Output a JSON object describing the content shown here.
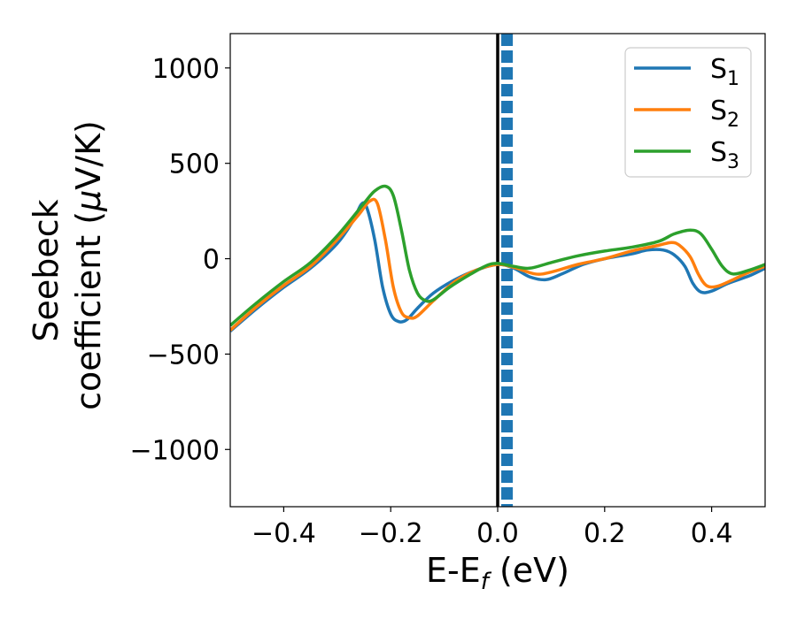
{
  "chart_data": {
    "type": "line",
    "xlabel": "E-E",
    "xlabel_sub": "f",
    "xlabel_unit": " (eV)",
    "ylabel_line1": "Seebeck",
    "ylabel_line2_prefix": "coefficient  (",
    "ylabel_mu": "μ",
    "ylabel_line2_suffix": "V/K)",
    "xlim": [
      -0.5,
      0.5
    ],
    "ylim": [
      -1300,
      1180
    ],
    "xticks": [
      -0.4,
      -0.2,
      0.0,
      0.2,
      0.4
    ],
    "xtick_labels": [
      "−0.4",
      "−0.2",
      "0.0",
      "0.2",
      "0.4"
    ],
    "yticks": [
      -1000,
      -500,
      0,
      500,
      1000
    ],
    "ytick_labels": [
      "−1000",
      "−500",
      "0",
      "500",
      "1000"
    ],
    "legend_position": "top-right",
    "vertical_lines": [
      {
        "x": 0.0,
        "color": "#000000",
        "style": "solid"
      },
      {
        "x": 0.01,
        "color": "#1f77b4",
        "style": "dashed"
      },
      {
        "x": 0.015,
        "color": "#1f77b4",
        "style": "dashed"
      },
      {
        "x": 0.02,
        "color": "#1f77b4",
        "style": "dashed"
      },
      {
        "x": 0.025,
        "color": "#1f77b4",
        "style": "dashed"
      }
    ],
    "series": [
      {
        "name": "S",
        "subscript": "1",
        "color": "#1f77b4",
        "points": [
          [
            -0.5,
            -380
          ],
          [
            -0.45,
            -260
          ],
          [
            -0.4,
            -150
          ],
          [
            -0.35,
            -50
          ],
          [
            -0.3,
            80
          ],
          [
            -0.27,
            200
          ],
          [
            -0.255,
            285
          ],
          [
            -0.245,
            270
          ],
          [
            -0.23,
            100
          ],
          [
            -0.215,
            -150
          ],
          [
            -0.2,
            -290
          ],
          [
            -0.185,
            -330
          ],
          [
            -0.17,
            -320
          ],
          [
            -0.15,
            -260
          ],
          [
            -0.12,
            -180
          ],
          [
            -0.08,
            -110
          ],
          [
            -0.04,
            -60
          ],
          [
            0.0,
            -30
          ],
          [
            0.03,
            -50
          ],
          [
            0.06,
            -95
          ],
          [
            0.09,
            -110
          ],
          [
            0.12,
            -80
          ],
          [
            0.16,
            -30
          ],
          [
            0.2,
            0
          ],
          [
            0.25,
            25
          ],
          [
            0.28,
            45
          ],
          [
            0.31,
            45
          ],
          [
            0.33,
            20
          ],
          [
            0.35,
            -40
          ],
          [
            0.365,
            -130
          ],
          [
            0.38,
            -175
          ],
          [
            0.4,
            -170
          ],
          [
            0.43,
            -130
          ],
          [
            0.47,
            -90
          ],
          [
            0.5,
            -50
          ]
        ]
      },
      {
        "name": "S",
        "subscript": "2",
        "color": "#ff7f0e",
        "points": [
          [
            -0.5,
            -375
          ],
          [
            -0.45,
            -250
          ],
          [
            -0.4,
            -140
          ],
          [
            -0.35,
            -40
          ],
          [
            -0.3,
            100
          ],
          [
            -0.26,
            230
          ],
          [
            -0.24,
            300
          ],
          [
            -0.225,
            290
          ],
          [
            -0.21,
            100
          ],
          [
            -0.195,
            -150
          ],
          [
            -0.18,
            -280
          ],
          [
            -0.165,
            -310
          ],
          [
            -0.15,
            -300
          ],
          [
            -0.12,
            -220
          ],
          [
            -0.08,
            -120
          ],
          [
            -0.04,
            -60
          ],
          [
            0.0,
            -30
          ],
          [
            0.03,
            -45
          ],
          [
            0.07,
            -80
          ],
          [
            0.1,
            -70
          ],
          [
            0.15,
            -30
          ],
          [
            0.2,
            0
          ],
          [
            0.25,
            40
          ],
          [
            0.3,
            70
          ],
          [
            0.325,
            85
          ],
          [
            0.34,
            70
          ],
          [
            0.36,
            10
          ],
          [
            0.375,
            -80
          ],
          [
            0.39,
            -140
          ],
          [
            0.41,
            -145
          ],
          [
            0.44,
            -110
          ],
          [
            0.47,
            -70
          ],
          [
            0.5,
            -40
          ]
        ]
      },
      {
        "name": "S",
        "subscript": "3",
        "color": "#2ca02c",
        "points": [
          [
            -0.5,
            -350
          ],
          [
            -0.45,
            -230
          ],
          [
            -0.4,
            -120
          ],
          [
            -0.35,
            -20
          ],
          [
            -0.3,
            120
          ],
          [
            -0.25,
            290
          ],
          [
            -0.23,
            355
          ],
          [
            -0.21,
            380
          ],
          [
            -0.195,
            330
          ],
          [
            -0.18,
            150
          ],
          [
            -0.165,
            -60
          ],
          [
            -0.15,
            -180
          ],
          [
            -0.135,
            -220
          ],
          [
            -0.12,
            -215
          ],
          [
            -0.09,
            -150
          ],
          [
            -0.05,
            -80
          ],
          [
            -0.02,
            -35
          ],
          [
            0.0,
            -25
          ],
          [
            0.03,
            -40
          ],
          [
            0.06,
            -50
          ],
          [
            0.1,
            -20
          ],
          [
            0.15,
            15
          ],
          [
            0.2,
            40
          ],
          [
            0.25,
            60
          ],
          [
            0.3,
            90
          ],
          [
            0.33,
            130
          ],
          [
            0.36,
            150
          ],
          [
            0.38,
            130
          ],
          [
            0.4,
            50
          ],
          [
            0.42,
            -40
          ],
          [
            0.44,
            -80
          ],
          [
            0.47,
            -60
          ],
          [
            0.5,
            -30
          ]
        ]
      }
    ]
  }
}
